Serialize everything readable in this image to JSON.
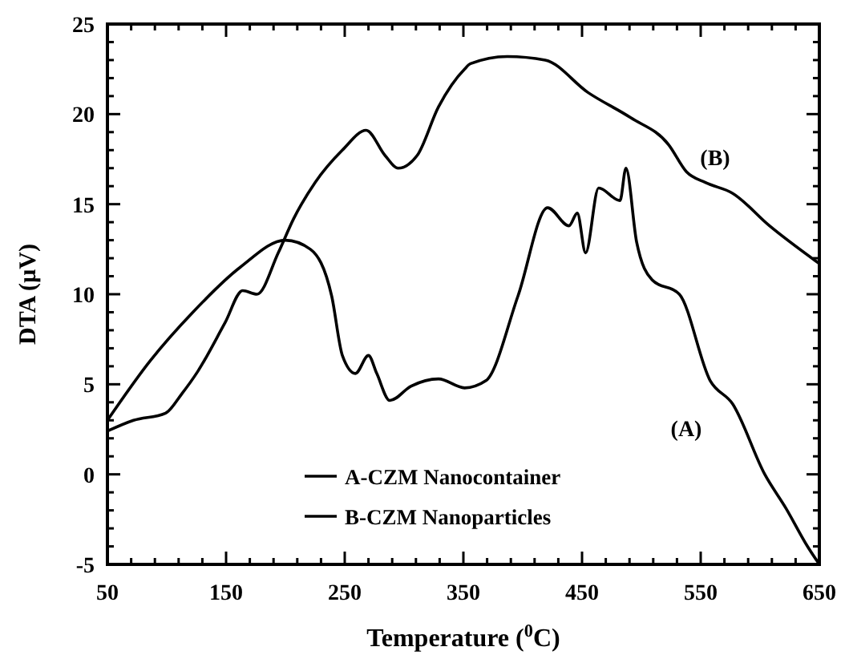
{
  "chart_data": {
    "type": "line",
    "xlabel": "Temperature ($^{0}$C)",
    "ylabel": "DTA (µV)",
    "xlim": [
      50,
      650
    ],
    "ylim": [
      -5,
      25
    ],
    "xticks": [
      50,
      {
        "value": 70,
        "label": null
      },
      {
        "value": 90,
        "label": null
      },
      {
        "value": 110,
        "label": null
      },
      {
        "value": 130,
        "label": null
      },
      150,
      {
        "value": 170,
        "label": null
      },
      {
        "value": 190,
        "label": null
      },
      {
        "value": 210,
        "label": null
      },
      {
        "value": 230,
        "label": null
      },
      250,
      {
        "value": 270,
        "label": null
      },
      {
        "value": 290,
        "label": null
      },
      {
        "value": 310,
        "label": null
      },
      {
        "value": 330,
        "label": null
      },
      350,
      {
        "value": 370,
        "label": null
      },
      {
        "value": 390,
        "label": null
      },
      {
        "value": 410,
        "label": null
      },
      {
        "value": 430,
        "label": null
      },
      450,
      {
        "value": 470,
        "label": null
      },
      {
        "value": 490,
        "label": null
      },
      {
        "value": 510,
        "label": null
      },
      {
        "value": 530,
        "label": null
      },
      550,
      {
        "value": 570,
        "label": null
      },
      {
        "value": 590,
        "label": null
      },
      {
        "value": 610,
        "label": null
      },
      {
        "value": 630,
        "label": null
      },
      650
    ],
    "yticks": [
      -5,
      {
        "value": -4,
        "label": null
      },
      {
        "value": -3,
        "label": null
      },
      {
        "value": -2,
        "label": null
      },
      {
        "value": -1,
        "label": null
      },
      0,
      {
        "value": 1,
        "label": null
      },
      {
        "value": 2,
        "label": null
      },
      {
        "value": 3,
        "label": null
      },
      {
        "value": 4,
        "label": null
      },
      5,
      {
        "value": 6,
        "label": null
      },
      {
        "value": 7,
        "label": null
      },
      {
        "value": 8,
        "label": null
      },
      {
        "value": 9,
        "label": null
      },
      10,
      {
        "value": 11,
        "label": null
      },
      {
        "value": 12,
        "label": null
      },
      {
        "value": 13,
        "label": null
      },
      {
        "value": 14,
        "label": null
      },
      15,
      {
        "value": 16,
        "label": null
      },
      {
        "value": 17,
        "label": null
      },
      {
        "value": 18,
        "label": null
      },
      {
        "value": 19,
        "label": null
      },
      20,
      {
        "value": 21,
        "label": null
      },
      {
        "value": 22,
        "label": null
      },
      {
        "value": 23,
        "label": null
      },
      {
        "value": 24,
        "label": null
      },
      25
    ],
    "grid": false,
    "legend": "bottom",
    "series": [
      {
        "name": "A-CZM Nanocontainer",
        "color": "#000000",
        "x": [
          50,
          86,
          122,
          162,
          200,
          221,
          239,
          248,
          259,
          270,
          277,
          288,
          306,
          329,
          351,
          369,
          396,
          421,
          439,
          446,
          453,
          464,
          482,
          487,
          496,
          509,
          532,
          558,
          577,
          604,
          622,
          640,
          650
        ],
        "values": [
          3.0,
          6.3,
          9.0,
          11.5,
          13.0,
          12.5,
          9.9,
          6.6,
          5.6,
          6.6,
          5.6,
          4.1,
          4.9,
          5.3,
          4.8,
          5.2,
          9.9,
          14.8,
          13.8,
          14.5,
          12.3,
          15.9,
          15.2,
          17.0,
          12.9,
          10.8,
          10.0,
          5.2,
          3.9,
          0.0,
          -1.9,
          -4.0,
          -5.0
        ]
      },
      {
        "name": "B-CZM Nanoparticles",
        "color": "#000000",
        "x": [
          50,
          72,
          99,
          113,
          126,
          149,
          164,
          176,
          194,
          207,
          225,
          248,
          268,
          284,
          295,
          311,
          329,
          351,
          356,
          387,
          419,
          455,
          491,
          523,
          538,
          554,
          577,
          608,
          650
        ],
        "values": [
          2.4,
          3.0,
          3.4,
          4.5,
          5.7,
          8.4,
          10.2,
          10.0,
          12.3,
          14.2,
          16.2,
          18.0,
          19.1,
          17.7,
          17.0,
          17.7,
          20.4,
          22.5,
          22.8,
          23.2,
          23.0,
          21.2,
          19.8,
          18.3,
          16.8,
          16.2,
          15.6,
          13.8,
          11.7
        ]
      }
    ],
    "annotations": [
      "(A)",
      "(B)"
    ]
  }
}
